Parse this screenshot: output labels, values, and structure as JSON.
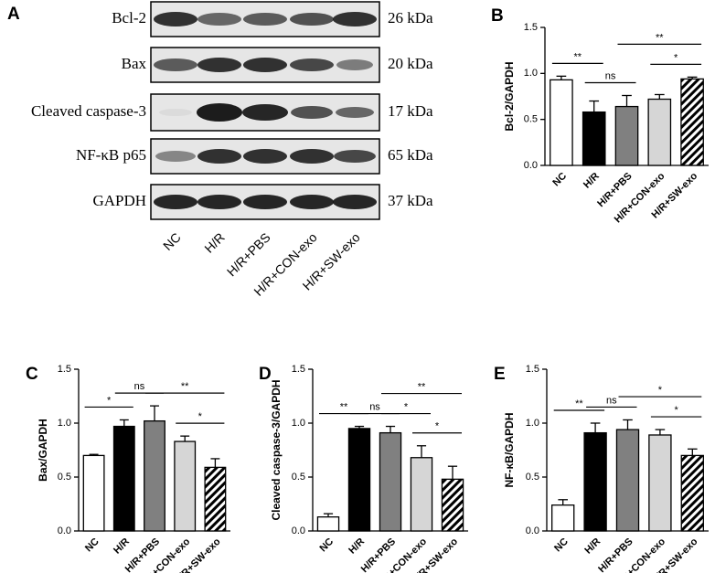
{
  "blot": {
    "panel": "A",
    "rows": [
      {
        "label": "Bcl-2",
        "size": "26 kDa"
      },
      {
        "label": "Bax",
        "size": "20 kDa"
      },
      {
        "label": "Cleaved caspase-3",
        "size": "17 kDa"
      },
      {
        "label": "NF-κB p65",
        "size": "65 kDa"
      },
      {
        "label": "GAPDH",
        "size": "37 kDa"
      }
    ],
    "lanes": [
      "NC",
      "H/R",
      "H/R+PBS",
      "H/R+CON-exo",
      "H/R+SW-exo"
    ]
  },
  "chart_data": [
    {
      "type": "bar",
      "panel": "B",
      "y_label": "Bcl-2/GAPDH",
      "categories": [
        "NC",
        "H/R",
        "H/R+PBS",
        "H/R+CON-exo",
        "H/R+SW-exo"
      ],
      "values": [
        0.93,
        0.58,
        0.64,
        0.72,
        0.94
      ],
      "errors": [
        0.04,
        0.12,
        0.12,
        0.05,
        0.02
      ],
      "colors": [
        "#ffffff",
        "#000000",
        "#808080",
        "#d6d6d6",
        "#000000"
      ],
      "hatched": [
        false,
        false,
        false,
        false,
        true
      ],
      "ylim": [
        0,
        1.5
      ],
      "yticks": [
        {
          "value": 0,
          "label": "0.0"
        },
        0.5,
        {
          "value": 1,
          "label": "1.0"
        },
        1.5
      ],
      "annotations": [
        {
          "from": 0,
          "to": 1,
          "label": "**"
        },
        {
          "from": 1,
          "to": 2,
          "label": "ns"
        },
        {
          "from": 3,
          "to": 4,
          "label": "*"
        },
        {
          "from": 2,
          "to": 4,
          "label": "**"
        }
      ]
    },
    {
      "type": "bar",
      "panel": "C",
      "y_label": "Bax/GAPDH",
      "categories": [
        "NC",
        "H/R",
        "H/R+PBS",
        "H/R+CON-exo",
        "H/R+SW-exo"
      ],
      "values": [
        0.7,
        0.97,
        1.02,
        0.83,
        0.59
      ],
      "errors": [
        0.01,
        0.06,
        0.14,
        0.05,
        0.08
      ],
      "colors": [
        "#ffffff",
        "#000000",
        "#808080",
        "#d6d6d6",
        "#000000"
      ],
      "hatched": [
        false,
        false,
        false,
        false,
        true
      ],
      "ylim": [
        0,
        1.5
      ],
      "yticks": [
        {
          "value": 0,
          "label": "0.0"
        },
        0.5,
        {
          "value": 1,
          "label": "1.0"
        },
        1.5
      ],
      "annotations": [
        {
          "from": 0,
          "to": 1,
          "label": "*"
        },
        {
          "from": 1,
          "to": 2,
          "label": "ns"
        },
        {
          "from": 3,
          "to": 4,
          "label": "*"
        },
        {
          "from": 2,
          "to": 4,
          "label": "**"
        }
      ]
    },
    {
      "type": "bar",
      "panel": "D",
      "y_label": "Cleaved caspase-3/GAPDH",
      "categories": [
        "NC",
        "H/R",
        "H/R+PBS",
        "H/R+CON-exo",
        "H/R+SW-exo"
      ],
      "values": [
        0.13,
        0.95,
        0.91,
        0.68,
        0.48
      ],
      "errors": [
        0.03,
        0.02,
        0.06,
        0.11,
        0.12
      ],
      "colors": [
        "#ffffff",
        "#000000",
        "#808080",
        "#d6d6d6",
        "#000000"
      ],
      "hatched": [
        false,
        false,
        false,
        false,
        true
      ],
      "ylim": [
        0,
        1.5
      ],
      "yticks": [
        {
          "value": 0,
          "label": "0.0"
        },
        0.5,
        {
          "value": 1,
          "label": "1.0"
        },
        1.5
      ],
      "annotations": [
        {
          "from": 0,
          "to": 1,
          "label": "**"
        },
        {
          "from": 1,
          "to": 2,
          "label": "ns"
        },
        {
          "from": 2,
          "to": 3,
          "label": "*"
        },
        {
          "from": 3,
          "to": 4,
          "label": "*"
        },
        {
          "from": 2,
          "to": 4,
          "label": "**"
        }
      ]
    },
    {
      "type": "bar",
      "panel": "E",
      "y_label": "NF-κB/GAPDH",
      "categories": [
        "NC",
        "H/R",
        "H/R+PBS",
        "H/R+CON-exo",
        "H/R+SW-exo"
      ],
      "values": [
        0.24,
        0.91,
        0.94,
        0.89,
        0.7
      ],
      "errors": [
        0.05,
        0.09,
        0.09,
        0.05,
        0.06
      ],
      "colors": [
        "#ffffff",
        "#000000",
        "#808080",
        "#d6d6d6",
        "#000000"
      ],
      "hatched": [
        false,
        false,
        false,
        false,
        true
      ],
      "ylim": [
        0,
        1.5
      ],
      "yticks": [
        {
          "value": 0,
          "label": "0.0"
        },
        0.5,
        {
          "value": 1,
          "label": "1.0"
        },
        1.5
      ],
      "annotations": [
        {
          "from": 0,
          "to": 1,
          "label": "**"
        },
        {
          "from": 1,
          "to": 2,
          "label": "ns"
        },
        {
          "from": 3,
          "to": 4,
          "label": "*"
        },
        {
          "from": 2,
          "to": 4,
          "label": "*"
        }
      ]
    }
  ]
}
